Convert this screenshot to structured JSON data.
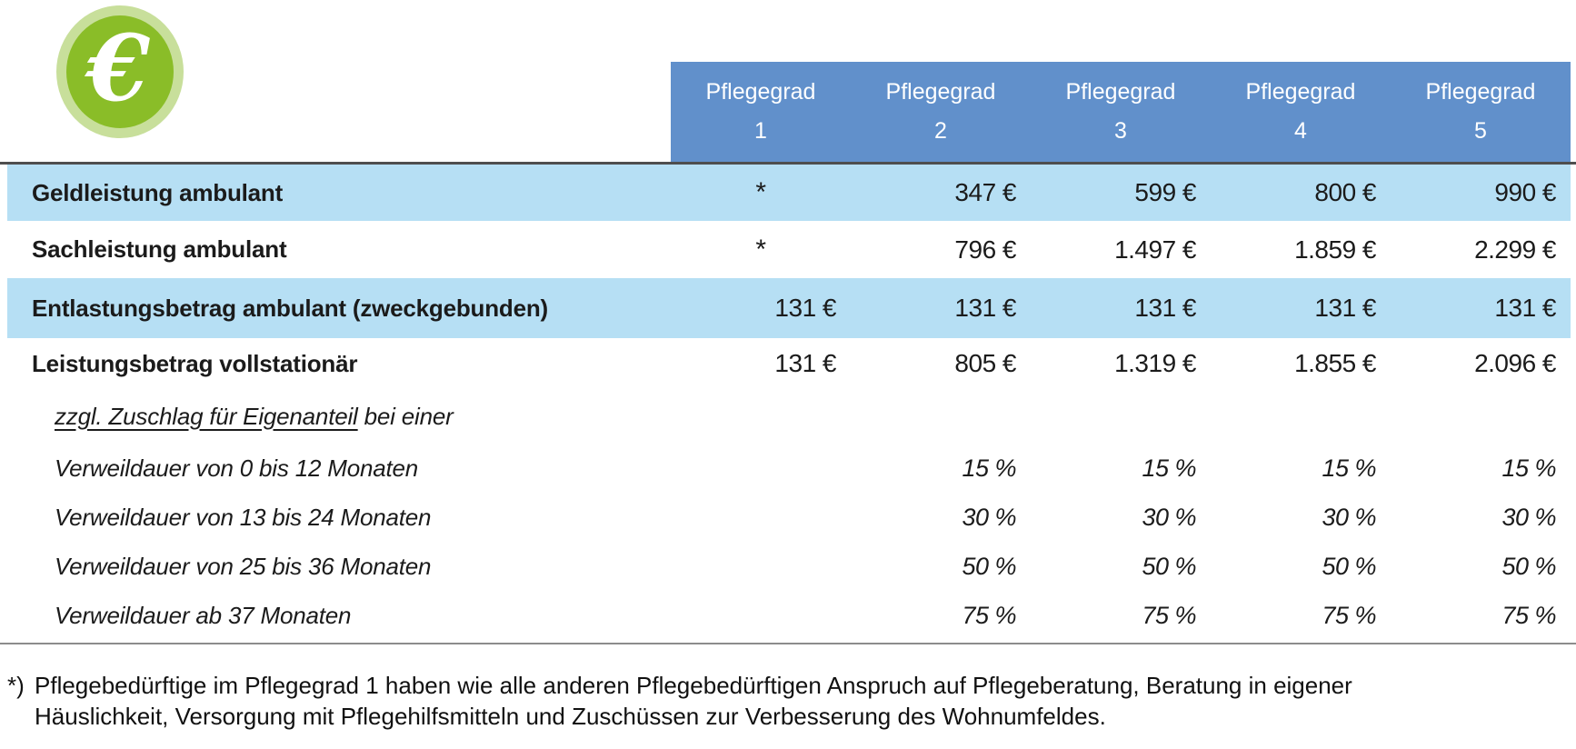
{
  "icon": {
    "symbol": "€",
    "outer_color": "#c8df9b",
    "inner_color": "#8abd28"
  },
  "colors": {
    "header_bg": "#6190cb",
    "row_highlight_bg": "#b6dff4",
    "separator_dark": "#4e4e4e",
    "separator_light": "#8c8c8c"
  },
  "table": {
    "header": {
      "cells": [
        {
          "line1": "Pflegegrad",
          "line2": "1"
        },
        {
          "line1": "Pflegegrad",
          "line2": "2"
        },
        {
          "line1": "Pflegegrad",
          "line2": "3"
        },
        {
          "line1": "Pflegegrad",
          "line2": "4"
        },
        {
          "line1": "Pflegegrad",
          "line2": "5"
        }
      ]
    },
    "rows": [
      {
        "label": "Geldleistung ambulant",
        "values": [
          "*",
          "347 €",
          "599 €",
          "800 €",
          "990 €"
        ]
      },
      {
        "label": "Sachleistung ambulant",
        "values": [
          "*",
          "796 €",
          "1.497 €",
          "1.859 €",
          "2.299 €"
        ]
      },
      {
        "label": "Entlastungsbetrag ambulant (zweckgebunden)",
        "values": [
          "131 €",
          "131 €",
          "131 €",
          "131 €",
          "131 €"
        ]
      },
      {
        "label": "Leistungsbetrag vollstationär",
        "values": [
          "131 €",
          "805 €",
          "1.319 €",
          "1.855 €",
          "2.096 €"
        ]
      },
      {
        "label_underlined": "zzgl. Zuschlag für Eigenanteil",
        "label_rest": " bei einer",
        "values": [
          "",
          "",
          "",
          "",
          ""
        ]
      },
      {
        "label": "Verweildauer von 0 bis 12 Monaten",
        "values": [
          "",
          "15 %",
          "15 %",
          "15 %",
          "15 %"
        ]
      },
      {
        "label": "Verweildauer von 13 bis 24 Monaten",
        "values": [
          "",
          "30 %",
          "30 %",
          "30 %",
          "30 %"
        ]
      },
      {
        "label": "Verweildauer von 25 bis 36 Monaten",
        "values": [
          "",
          "50 %",
          "50 %",
          "50 %",
          "50 %"
        ]
      },
      {
        "label": "Verweildauer ab 37 Monaten",
        "values": [
          "",
          "75 %",
          "75 %",
          "75 %",
          "75 %"
        ]
      }
    ]
  },
  "footnote": {
    "marker": "*)",
    "text": "Pflegebedürftige im Pflegegrad 1 haben wie alle anderen Pflegebedürftigen Anspruch auf Pflegeberatung, Beratung in eigener Häuslichkeit, Versorgung mit Pflegehilfsmitteln und Zuschüssen zur Verbesserung des Wohnumfeldes."
  }
}
